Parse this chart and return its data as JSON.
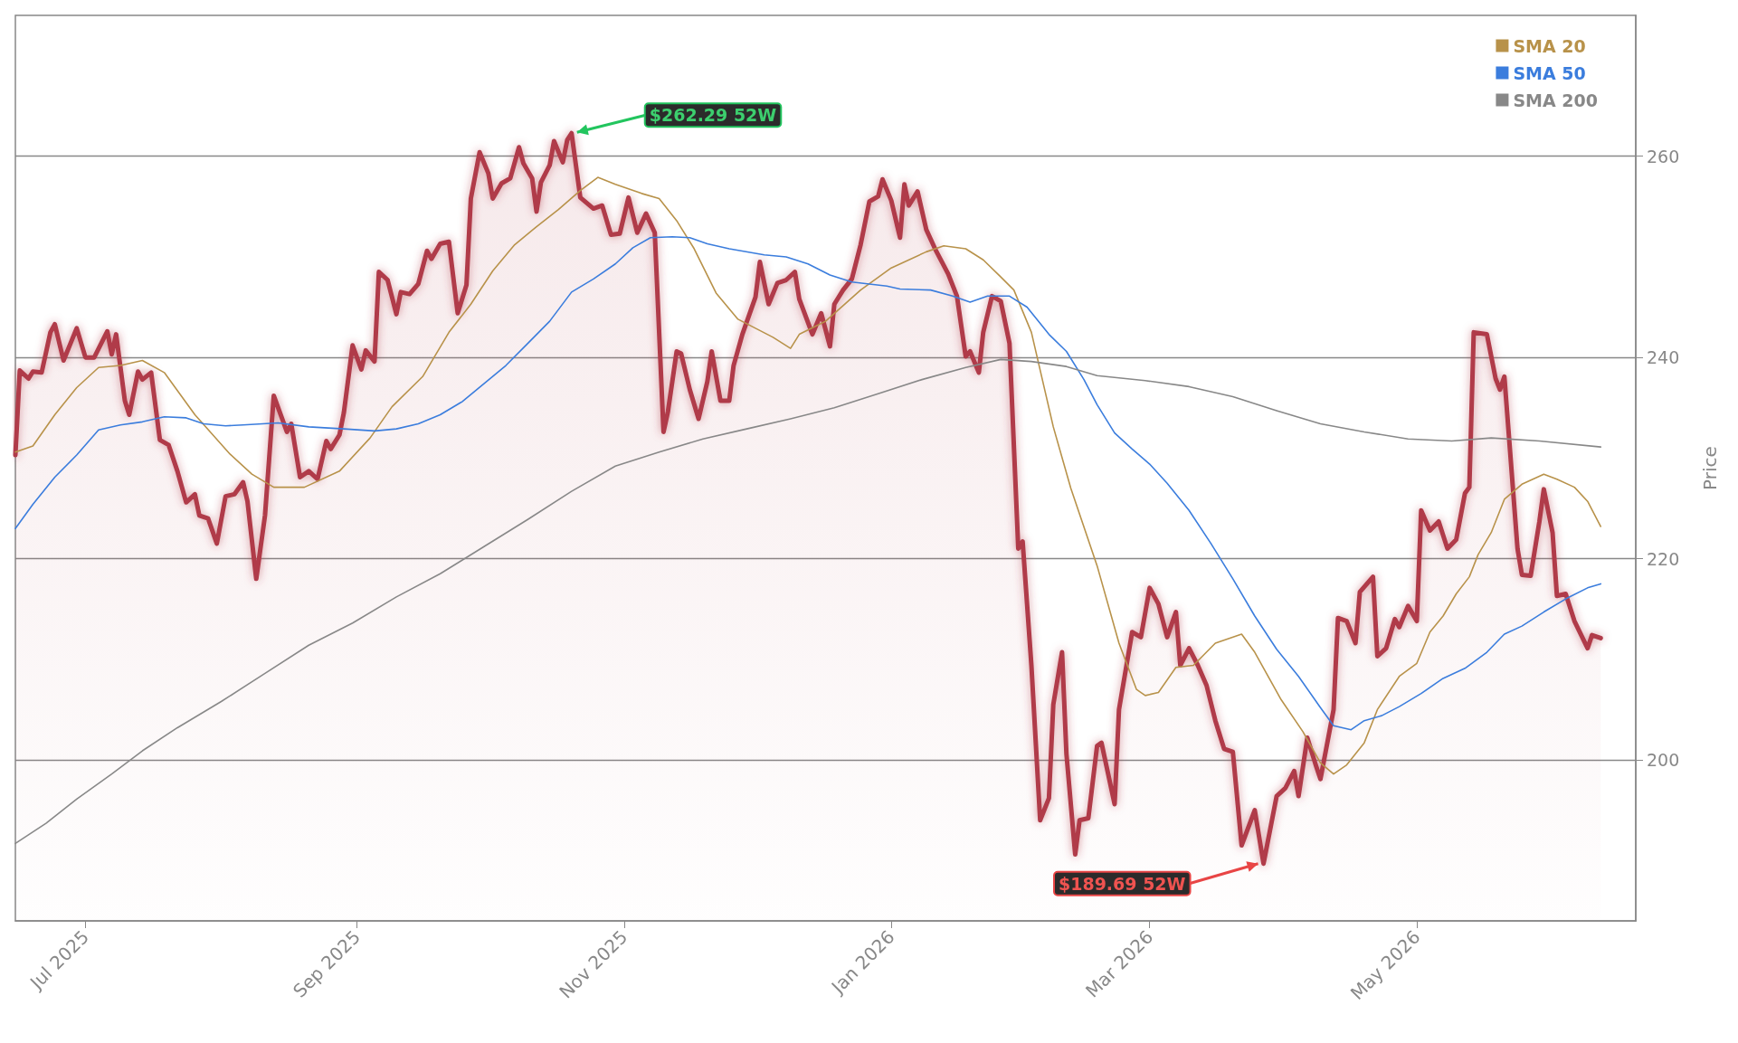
{
  "chart_data": {
    "type": "line",
    "ylabel": "Price",
    "ylim": [
      184,
      274
    ],
    "yticks": [
      200,
      220,
      240,
      260
    ],
    "xlim": [
      "2025-06-15",
      "2026-06-20"
    ],
    "xticks": [
      {
        "value": "2025-07-01",
        "label": "Jul 2025"
      },
      {
        "value": "2025-09-01",
        "label": "Sep 2025"
      },
      {
        "value": "2025-11-01",
        "label": "Nov 2025"
      },
      {
        "value": "2026-01-01",
        "label": "Jan 2026"
      },
      {
        "value": "2026-03-01",
        "label": "Mar 2026"
      },
      {
        "value": "2026-05-01",
        "label": "May 2026"
      }
    ],
    "grid": "y",
    "legend": "top right",
    "marker": "none",
    "line_style": "solid",
    "annotations": [
      {
        "text": "$262.29 52W",
        "x": "2025-10-20",
        "y": 262.29
      },
      {
        "text": "$189.69 52W",
        "x": "2026-03-27",
        "y": 189.69
      }
    ],
    "series": [
      {
        "type": "area",
        "color": "#b03a48",
        "x": [
          "2025-06-15",
          "2025-06-16",
          "2025-06-18",
          "2025-06-19",
          "2025-06-21",
          "2025-06-23",
          "2025-06-24",
          "2025-06-26",
          "2025-06-29",
          "2025-07-01",
          "2025-07-03",
          "2025-07-06",
          "2025-07-07",
          "2025-07-08",
          "2025-07-10",
          "2025-07-11",
          "2025-07-13",
          "2025-07-14",
          "2025-07-16",
          "2025-07-18",
          "2025-07-20",
          "2025-07-22",
          "2025-07-24",
          "2025-07-26",
          "2025-07-27",
          "2025-07-29",
          "2025-07-31",
          "2025-08-02",
          "2025-08-04",
          "2025-08-06",
          "2025-08-07",
          "2025-08-09",
          "2025-08-11",
          "2025-08-13",
          "2025-08-16",
          "2025-08-17",
          "2025-08-19",
          "2025-08-21",
          "2025-08-23",
          "2025-08-25",
          "2025-08-26",
          "2025-08-28",
          "2025-08-29",
          "2025-08-31",
          "2025-09-02",
          "2025-09-03",
          "2025-09-05",
          "2025-09-06",
          "2025-09-08",
          "2025-09-10",
          "2025-09-11",
          "2025-09-13",
          "2025-09-15",
          "2025-09-17",
          "2025-09-18",
          "2025-09-20",
          "2025-09-22",
          "2025-09-24",
          "2025-09-26",
          "2025-09-27",
          "2025-09-29",
          "2025-10-01",
          "2025-10-02",
          "2025-10-04",
          "2025-10-06",
          "2025-10-08",
          "2025-10-09",
          "2025-10-11",
          "2025-10-12",
          "2025-10-13",
          "2025-10-15",
          "2025-10-16",
          "2025-10-18",
          "2025-10-19",
          "2025-10-20",
          "2025-10-22",
          "2025-10-25",
          "2025-10-27",
          "2025-10-29",
          "2025-10-31",
          "2025-11-02",
          "2025-11-04",
          "2025-11-06",
          "2025-11-08",
          "2025-11-10",
          "2025-11-11",
          "2025-11-13",
          "2025-11-14",
          "2025-11-16",
          "2025-11-18",
          "2025-11-20",
          "2025-11-21",
          "2025-11-23",
          "2025-11-25",
          "2025-11-26",
          "2025-11-28",
          "2025-12-01",
          "2025-12-02",
          "2025-12-04",
          "2025-12-06",
          "2025-12-08",
          "2025-12-10",
          "2025-12-11",
          "2025-12-14",
          "2025-12-16",
          "2025-12-18",
          "2025-12-19",
          "2025-12-21",
          "2025-12-23",
          "2025-12-25",
          "2025-12-27",
          "2025-12-29",
          "2025-12-30",
          "2026-01-01",
          "2026-01-03",
          "2026-01-04",
          "2026-01-05",
          "2026-01-07",
          "2026-01-09",
          "2026-01-11",
          "2026-01-14",
          "2026-01-16",
          "2026-01-18",
          "2026-01-19",
          "2026-01-21",
          "2026-01-22",
          "2026-01-24",
          "2026-01-26",
          "2026-01-28",
          "2026-01-30",
          "2026-01-31",
          "2026-02-02",
          "2026-02-04",
          "2026-02-06",
          "2026-02-07",
          "2026-02-09",
          "2026-02-10",
          "2026-02-12",
          "2026-02-13",
          "2026-02-15",
          "2026-02-17",
          "2026-02-18",
          "2026-02-21",
          "2026-02-22",
          "2026-02-25",
          "2026-02-27",
          "2026-03-01",
          "2026-03-03",
          "2026-03-05",
          "2026-03-07",
          "2026-03-08",
          "2026-03-10",
          "2026-03-12",
          "2026-03-14",
          "2026-03-16",
          "2026-03-18",
          "2026-03-20",
          "2026-03-22",
          "2026-03-25",
          "2026-03-27",
          "2026-03-30",
          "2026-04-01",
          "2026-04-03",
          "2026-04-04",
          "2026-04-06",
          "2026-04-08",
          "2026-04-09",
          "2026-04-12",
          "2026-04-13",
          "2026-04-15",
          "2026-04-17",
          "2026-04-18",
          "2026-04-21",
          "2026-04-22",
          "2026-04-24",
          "2026-04-26",
          "2026-04-27",
          "2026-04-29",
          "2026-05-01",
          "2026-05-02",
          "2026-05-04",
          "2026-05-06",
          "2026-05-08",
          "2026-05-10",
          "2026-05-12",
          "2026-05-13",
          "2026-05-14",
          "2026-05-17",
          "2026-05-19",
          "2026-05-20",
          "2026-05-21",
          "2026-05-24",
          "2026-05-25",
          "2026-05-27",
          "2026-05-29",
          "2026-05-30",
          "2026-06-01",
          "2026-06-02",
          "2026-06-04",
          "2026-06-06",
          "2026-06-07",
          "2026-06-09",
          "2026-06-10",
          "2026-06-12"
        ],
        "values": [
          230.3,
          238.7,
          237.9,
          238.6,
          238.5,
          242.5,
          243.3,
          239.7,
          242.9,
          240,
          240,
          242.6,
          240.3,
          242.3,
          235.7,
          234.3,
          238.6,
          237.8,
          238.5,
          231.8,
          231.3,
          228.7,
          225.6,
          226.4,
          224.3,
          224,
          221.5,
          226.2,
          226.4,
          227.6,
          225.7,
          218,
          224.3,
          236.2,
          232.6,
          233.4,
          228.1,
          228.7,
          227.9,
          231.7,
          230.9,
          232.3,
          234.5,
          241.2,
          238.8,
          240.7,
          239.6,
          248.5,
          247.7,
          244.3,
          246.5,
          246.3,
          247.3,
          250.6,
          249.8,
          251.3,
          251.5,
          244.4,
          247.2,
          255.8,
          260.4,
          258.3,
          255.8,
          257.3,
          257.8,
          260.9,
          259.3,
          257.8,
          254.5,
          257.4,
          259.1,
          261.5,
          259.4,
          261.6,
          262.29,
          255.9,
          254.8,
          255.1,
          252.2,
          252.3,
          255.9,
          252.4,
          254.3,
          252.4,
          232.6,
          234.6,
          240.6,
          240.4,
          236.8,
          233.9,
          237.6,
          240.6,
          235.7,
          235.7,
          239.2,
          242.3,
          246,
          249.5,
          245.3,
          247.4,
          247.7,
          248.5,
          245.8,
          242.3,
          244.4,
          241.1,
          245.3,
          246.7,
          247.8,
          251.2,
          255.5,
          256,
          257.7,
          255.6,
          251.9,
          257.2,
          255.1,
          256.5,
          252.7,
          250.8,
          248.3,
          246.1,
          240.1,
          240.6,
          238.5,
          242.5,
          246.1,
          245.6,
          241.4,
          221,
          221.7,
          209.4,
          194,
          196.2,
          205.5,
          210.7,
          200.6,
          190.6,
          194,
          194.2,
          201.4,
          201.7,
          195.6,
          205,
          212.7,
          212.2,
          217.1,
          215.5,
          212.2,
          214.7,
          209.4,
          211.1,
          209.4,
          207.4,
          203.9,
          201.1,
          200.8,
          191.5,
          195,
          189.69,
          196.4,
          197.2,
          198.9,
          196.4,
          202.2,
          199.4,
          198.1,
          205,
          214.1,
          213.8,
          211.6,
          216.7,
          218.2,
          210.3,
          211.1,
          214,
          213.2,
          215.3,
          213.8,
          224.8,
          222.8,
          223.7,
          221,
          221.9,
          226.5,
          227.1,
          242.5,
          242.3,
          237.9,
          236.8,
          238.1,
          221,
          218.4,
          218.3,
          223.7,
          226.9,
          222.6,
          216.3,
          216.5,
          213.8,
          212.9,
          211.1,
          212.4,
          212.1
        ]
      },
      {
        "name": "SMA 20",
        "type": "line",
        "color": "#b8924a",
        "x": [
          "2025-06-15",
          "2025-06-19",
          "2025-06-24",
          "2025-06-29",
          "2025-07-04",
          "2025-07-09",
          "2025-07-14",
          "2025-07-19",
          "2025-07-26",
          "2025-08-03",
          "2025-08-08",
          "2025-08-13",
          "2025-08-20",
          "2025-08-28",
          "2025-09-04",
          "2025-09-09",
          "2025-09-16",
          "2025-09-22",
          "2025-09-27",
          "2025-10-02",
          "2025-10-07",
          "2025-10-12",
          "2025-10-17",
          "2025-10-22",
          "2025-10-26",
          "2025-10-30",
          "2025-11-05",
          "2025-11-09",
          "2025-11-13",
          "2025-11-17",
          "2025-11-22",
          "2025-11-27",
          "2025-12-05",
          "2025-12-09",
          "2025-12-11",
          "2025-12-17",
          "2025-12-25",
          "2026-01-01",
          "2026-01-09",
          "2026-01-13",
          "2026-01-18",
          "2026-01-22",
          "2026-01-26",
          "2026-01-29",
          "2026-02-02",
          "2026-02-07",
          "2026-02-11",
          "2026-02-17",
          "2026-02-22",
          "2026-02-26",
          "2026-02-28",
          "2026-03-03",
          "2026-03-07",
          "2026-03-11",
          "2026-03-16",
          "2026-03-22",
          "2026-03-25",
          "2026-03-31",
          "2026-04-05",
          "2026-04-09",
          "2026-04-12",
          "2026-04-15",
          "2026-04-19",
          "2026-04-22",
          "2026-04-27",
          "2026-05-01",
          "2026-05-04",
          "2026-05-07",
          "2026-05-10",
          "2026-05-13",
          "2026-05-15",
          "2026-05-18",
          "2026-05-21",
          "2026-05-25",
          "2026-05-30",
          "2026-06-02",
          "2026-06-06",
          "2026-06-09",
          "2026-06-12"
        ],
        "values": [
          230.6,
          231.2,
          234.3,
          237,
          239,
          239.2,
          239.7,
          238.5,
          234.3,
          230.4,
          228.4,
          227.1,
          227.1,
          228.7,
          232,
          235.1,
          238.1,
          242.5,
          245.3,
          248.6,
          251.2,
          253,
          254.7,
          256.6,
          257.9,
          257.2,
          256.3,
          255.8,
          253.6,
          250.8,
          246.4,
          243.8,
          242,
          240.9,
          242.3,
          243.6,
          246.7,
          248.9,
          250.5,
          251.1,
          250.8,
          249.7,
          248,
          246.7,
          242.5,
          233.1,
          227,
          219.3,
          211.6,
          207,
          206.4,
          206.7,
          209.2,
          209.4,
          211.6,
          212.5,
          210.7,
          206,
          202.8,
          199.7,
          198.6,
          199.5,
          201.7,
          205,
          208.3,
          209.6,
          212.7,
          214.3,
          216.5,
          218.2,
          220.4,
          222.6,
          225.9,
          227.4,
          228.4,
          227.9,
          227.1,
          225.7,
          223.2
        ]
      },
      {
        "name": "SMA 50",
        "type": "line",
        "color": "#3b7ddd",
        "x": [
          "2025-06-15",
          "2025-06-19",
          "2025-06-24",
          "2025-06-29",
          "2025-07-04",
          "2025-07-09",
          "2025-07-14",
          "2025-07-19",
          "2025-07-24",
          "2025-07-28",
          "2025-08-02",
          "2025-08-06",
          "2025-08-14",
          "2025-08-21",
          "2025-08-29",
          "2025-09-05",
          "2025-09-10",
          "2025-09-15",
          "2025-09-20",
          "2025-09-25",
          "2025-09-30",
          "2025-10-05",
          "2025-10-10",
          "2025-10-15",
          "2025-10-20",
          "2025-10-25",
          "2025-10-30",
          "2025-11-03",
          "2025-11-07",
          "2025-11-12",
          "2025-11-16",
          "2025-11-20",
          "2025-11-25",
          "2025-12-03",
          "2025-12-08",
          "2025-12-13",
          "2025-12-18",
          "2025-12-23",
          "2025-12-31",
          "2026-01-03",
          "2026-01-10",
          "2026-01-15",
          "2026-01-19",
          "2026-01-23",
          "2026-01-28",
          "2026-02-01",
          "2026-02-06",
          "2026-02-10",
          "2026-02-14",
          "2026-02-17",
          "2026-02-21",
          "2026-02-25",
          "2026-03-01",
          "2026-03-05",
          "2026-03-10",
          "2026-03-15",
          "2026-03-20",
          "2026-03-25",
          "2026-03-30",
          "2026-04-04",
          "2026-04-09",
          "2026-04-12",
          "2026-04-16",
          "2026-04-19",
          "2026-04-23",
          "2026-04-27",
          "2026-05-02",
          "2026-05-07",
          "2026-05-12",
          "2026-05-17",
          "2026-05-21",
          "2026-05-25",
          "2026-05-30",
          "2026-06-04",
          "2026-06-09",
          "2026-06-12"
        ],
        "values": [
          223,
          225.4,
          228.1,
          230.3,
          232.8,
          233.3,
          233.6,
          234.1,
          234,
          233.4,
          233.2,
          233.3,
          233.5,
          233.1,
          232.9,
          232.7,
          232.9,
          233.4,
          234.3,
          235.6,
          237.4,
          239.2,
          241.4,
          243.6,
          246.5,
          247.8,
          249.3,
          250.9,
          251.9,
          252,
          251.9,
          251.3,
          250.8,
          250.2,
          250,
          249.3,
          248.2,
          247.5,
          247.1,
          246.8,
          246.7,
          246.1,
          245.5,
          246.1,
          246.1,
          245,
          242.3,
          240.6,
          237.8,
          235.3,
          232.5,
          230.9,
          229.4,
          227.5,
          224.8,
          221.5,
          218,
          214.3,
          211,
          208.3,
          205.2,
          203.4,
          203,
          203.9,
          204.4,
          205.3,
          206.6,
          208.1,
          209.1,
          210.7,
          212.5,
          213.3,
          214.7,
          216,
          217.1,
          217.5
        ]
      },
      {
        "name": "SMA 200",
        "type": "line",
        "color": "#888888",
        "x": [
          "2025-06-15",
          "2025-06-22",
          "2025-06-29",
          "2025-07-07",
          "2025-07-14",
          "2025-07-22",
          "2025-08-01",
          "2025-08-11",
          "2025-08-21",
          "2025-08-31",
          "2025-09-10",
          "2025-09-20",
          "2025-09-30",
          "2025-10-10",
          "2025-10-20",
          "2025-10-30",
          "2025-11-09",
          "2025-11-19",
          "2025-11-29",
          "2025-12-09",
          "2025-12-19",
          "2025-12-29",
          "2026-01-08",
          "2026-01-18",
          "2026-01-26",
          "2026-02-02",
          "2026-02-10",
          "2026-02-17",
          "2026-02-28",
          "2026-03-10",
          "2026-03-20",
          "2026-03-30",
          "2026-04-09",
          "2026-04-19",
          "2026-04-29",
          "2026-05-09",
          "2026-05-18",
          "2026-05-29",
          "2026-06-12"
        ],
        "values": [
          191.7,
          193.7,
          196.1,
          198.6,
          200.9,
          203.2,
          205.8,
          208.6,
          211.4,
          213.6,
          216.2,
          218.5,
          221.2,
          223.9,
          226.7,
          229.2,
          230.6,
          231.9,
          232.9,
          233.9,
          235,
          236.4,
          237.8,
          239,
          239.8,
          239.6,
          239.1,
          238.2,
          237.7,
          237.1,
          236.1,
          234.7,
          233.4,
          232.6,
          231.9,
          231.7,
          232,
          231.7,
          231.1
        ]
      }
    ]
  }
}
